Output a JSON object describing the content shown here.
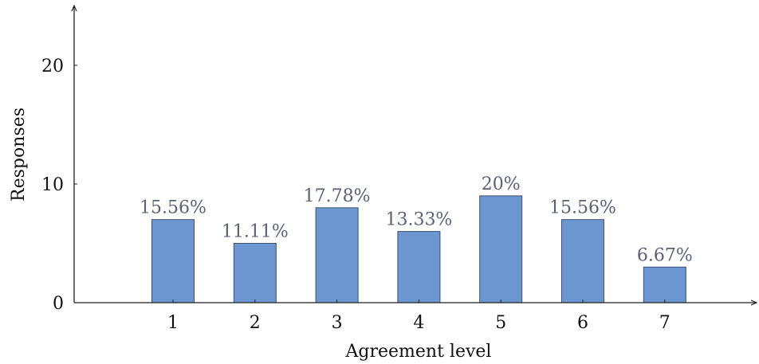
{
  "chart_data": {
    "type": "bar",
    "title": "",
    "xlabel": "Agreement level",
    "ylabel": "Responses",
    "categories": [
      "1",
      "2",
      "3",
      "4",
      "5",
      "6",
      "7"
    ],
    "values": [
      7,
      5,
      8,
      6,
      9,
      7,
      3
    ],
    "data_labels": [
      "15.56%",
      "11.11%",
      "17.78%",
      "13.33%",
      "20%",
      "15.56%",
      "6.67%"
    ],
    "yticks": [
      "0",
      "10",
      "20"
    ],
    "ylim": [
      0,
      24
    ],
    "grid": false,
    "legend": "none",
    "colors": {
      "bar_fill": "#6b96cf",
      "bar_edge": "#3d4f73",
      "label": "#5a6278"
    }
  }
}
